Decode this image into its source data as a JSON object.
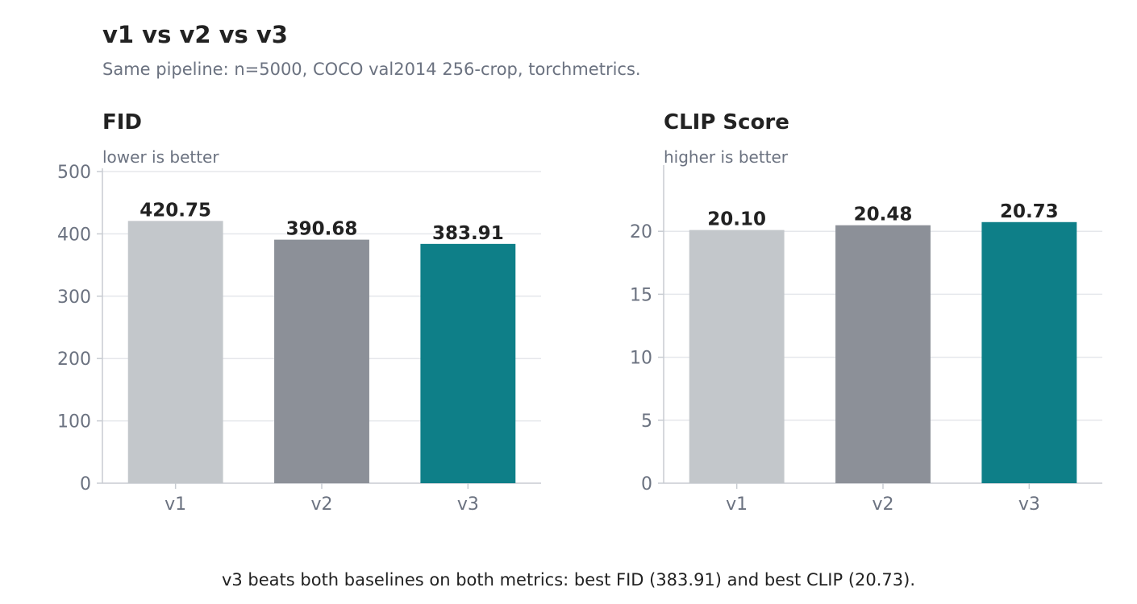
{
  "title": "v1 vs v2 vs v3",
  "subtitle": "Same pipeline: n=5000, COCO val2014 256-crop, torchmetrics.",
  "footnote": "v3 beats both baselines on both metrics: best FID (383.91) and best CLIP (20.73).",
  "colors": {
    "text": "#222222",
    "muted": "#6b7280",
    "grid": "#e5e7eb",
    "axis": "#c8ccd2",
    "bars": [
      "#c3c7cb",
      "#8c9098",
      "#0e7f88"
    ]
  },
  "chart_data": [
    {
      "type": "bar",
      "title": "FID",
      "subtitle": "lower is better",
      "categories": [
        "v1",
        "v2",
        "v3"
      ],
      "values": [
        420.75,
        390.68,
        383.91
      ],
      "value_labels": [
        "420.75",
        "390.68",
        "383.91"
      ],
      "ylim": [
        0,
        500
      ],
      "yticks": [
        0,
        100,
        200,
        300,
        400,
        500
      ],
      "grid": true
    },
    {
      "type": "bar",
      "title": "CLIP Score",
      "subtitle": "higher is better",
      "categories": [
        "v1",
        "v2",
        "v3"
      ],
      "values": [
        20.1,
        20.48,
        20.73
      ],
      "value_labels": [
        "20.10",
        "20.48",
        "20.73"
      ],
      "ylim": [
        0,
        25
      ],
      "yticks": [
        0,
        5,
        10,
        15,
        20
      ],
      "grid": true
    }
  ]
}
